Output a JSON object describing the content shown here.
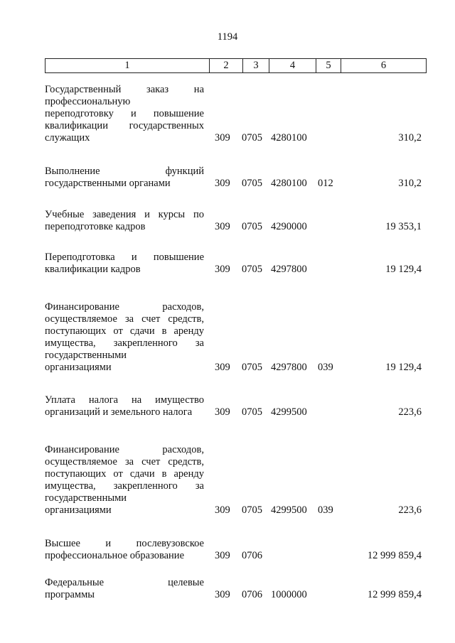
{
  "page_number": "1194",
  "header": [
    "1",
    "2",
    "3",
    "4",
    "5",
    "6"
  ],
  "rows": [
    {
      "lines": [
        "Государственный заказ на",
        "профессиональную",
        "переподготовку и повышение",
        "квалификации государственных",
        "служащих"
      ],
      "c2": "309",
      "c3": "0705",
      "c4": "4280100",
      "c5": "",
      "c6": "310,2"
    },
    {
      "lines": [
        "Выполнение функций",
        "государственными органами"
      ],
      "c2": "309",
      "c3": "0705",
      "c4": "4280100",
      "c5": "012",
      "c6": "310,2"
    },
    {
      "lines": [
        "Учебные заведения и курсы по",
        "переподготовке кадров"
      ],
      "c2": "309",
      "c3": "0705",
      "c4": "4290000",
      "c5": "",
      "c6": "19 353,1"
    },
    {
      "lines": [
        "Переподготовка и повышение",
        "квалификации кадров"
      ],
      "c2": "309",
      "c3": "0705",
      "c4": "4297800",
      "c5": "",
      "c6": "19 129,4"
    },
    {
      "lines": [
        "Финансирование расходов,",
        "осуществляемое за счет средств,",
        "поступающих от сдачи в аренду",
        "имущества, закрепленного за",
        "государственными",
        "организациями"
      ],
      "c2": "309",
      "c3": "0705",
      "c4": "4297800",
      "c5": "039",
      "c6": "19 129,4"
    },
    {
      "lines": [
        "Уплата налога на имущество",
        "организаций и земельного налога"
      ],
      "c2": "309",
      "c3": "0705",
      "c4": "4299500",
      "c5": "",
      "c6": "223,6"
    },
    {
      "lines": [
        "Финансирование расходов,",
        "осуществляемое за счет средств,",
        "поступающих от сдачи в аренду",
        "имущества, закрепленного за",
        "государственными",
        "организациями"
      ],
      "c2": "309",
      "c3": "0705",
      "c4": "4299500",
      "c5": "039",
      "c6": "223,6"
    },
    {
      "lines": [
        "Высшее и послевузовское",
        "профессиональное образование"
      ],
      "c2": "309",
      "c3": "0706",
      "c4": "",
      "c5": "",
      "c6": "12 999 859,4"
    },
    {
      "lines": [
        "Федеральные целевые",
        "программы"
      ],
      "c2": "309",
      "c3": "0706",
      "c4": "1000000",
      "c5": "",
      "c6": "12 999 859,4"
    }
  ]
}
